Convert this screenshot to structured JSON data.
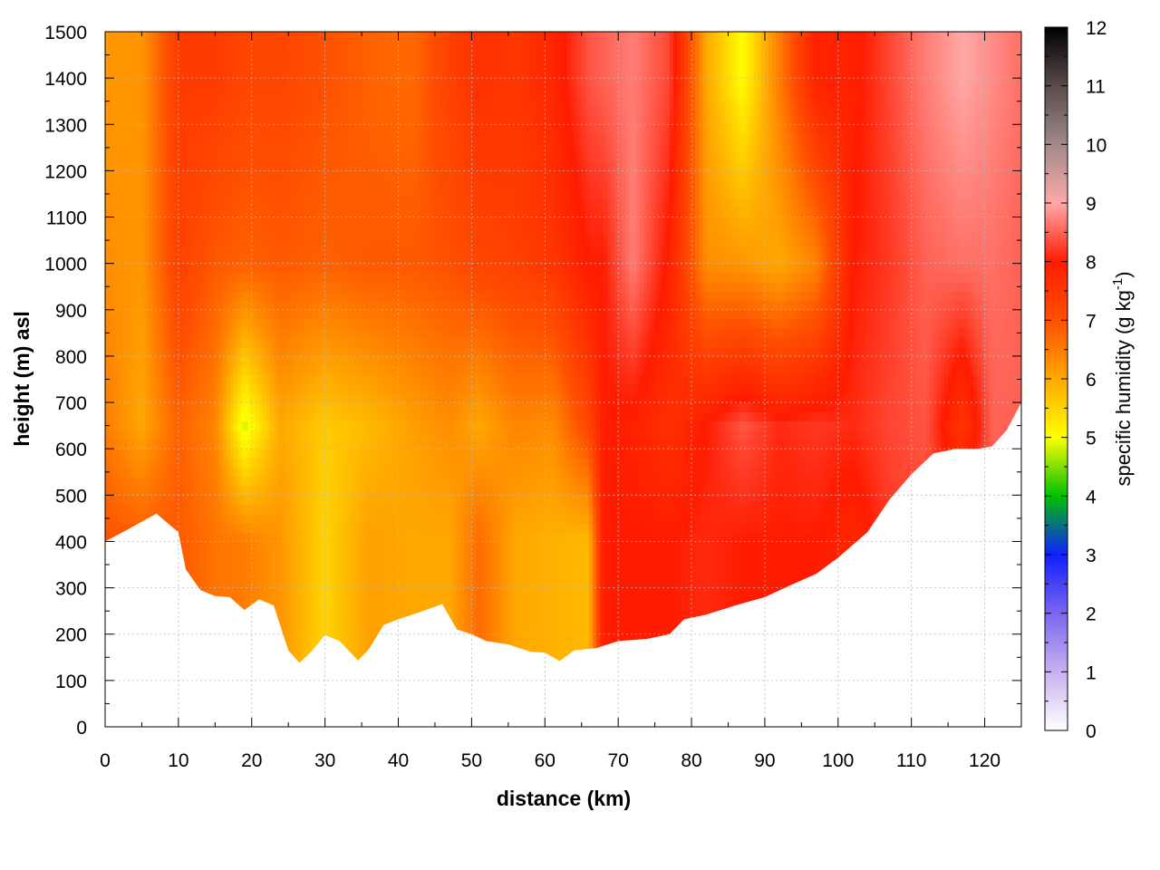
{
  "chart_data": {
    "type": "heatmap",
    "title": "",
    "xlabel": "distance (km)",
    "ylabel": "height (m) asl",
    "colorbar_label": "specific humidity (g kg",
    "colorbar_label_exponent": "-1",
    "colorbar_label_close": ")",
    "xlim": [
      0,
      125
    ],
    "ylim": [
      0,
      1500
    ],
    "clim": [
      0,
      12
    ],
    "x_ticks": [
      "0",
      "10",
      "20",
      "30",
      "40",
      "50",
      "60",
      "70",
      "80",
      "90",
      "100",
      "110",
      "120"
    ],
    "y_ticks": [
      "0",
      "100",
      "200",
      "300",
      "400",
      "500",
      "600",
      "700",
      "800",
      "900",
      "1000",
      "1100",
      "1200",
      "1300",
      "1400",
      "1500"
    ],
    "colorbar_ticks": [
      "0",
      "1",
      "2",
      "3",
      "4",
      "5",
      "6",
      "7",
      "8",
      "9",
      "10",
      "11",
      "12"
    ],
    "grid": true,
    "colormap": [
      [
        0,
        "#ffffff"
      ],
      [
        1,
        "#c8b0f0"
      ],
      [
        2,
        "#7a66f0"
      ],
      [
        3,
        "#1020ff"
      ],
      [
        4,
        "#00c000"
      ],
      [
        5,
        "#ffff00"
      ],
      [
        6,
        "#ffa800"
      ],
      [
        7,
        "#ff5000"
      ],
      [
        8,
        "#ff1c00"
      ],
      [
        9,
        "#ffa8a8"
      ],
      [
        10,
        "#a08a8a"
      ],
      [
        11,
        "#5a4a4a"
      ],
      [
        12,
        "#000000"
      ]
    ],
    "terrain_bottom": [
      [
        0,
        400
      ],
      [
        3,
        425
      ],
      [
        7,
        460
      ],
      [
        10,
        420
      ],
      [
        11,
        340
      ],
      [
        13,
        295
      ],
      [
        15,
        282
      ],
      [
        17,
        280
      ],
      [
        19,
        252
      ],
      [
        21,
        275
      ],
      [
        23,
        262
      ],
      [
        25,
        165
      ],
      [
        26.5,
        138
      ],
      [
        28,
        160
      ],
      [
        30,
        198
      ],
      [
        32,
        185
      ],
      [
        34.5,
        143
      ],
      [
        36,
        168
      ],
      [
        38,
        220
      ],
      [
        40,
        232
      ],
      [
        43,
        248
      ],
      [
        46,
        265
      ],
      [
        48,
        210
      ],
      [
        50,
        200
      ],
      [
        52,
        185
      ],
      [
        55,
        178
      ],
      [
        58,
        162
      ],
      [
        60,
        160
      ],
      [
        62,
        142
      ],
      [
        64,
        165
      ],
      [
        67,
        170
      ],
      [
        70,
        185
      ],
      [
        74,
        190
      ],
      [
        77,
        200
      ],
      [
        79,
        232
      ],
      [
        82,
        242
      ],
      [
        86,
        262
      ],
      [
        90,
        280
      ],
      [
        93,
        302
      ],
      [
        97,
        330
      ],
      [
        100,
        365
      ],
      [
        104,
        420
      ],
      [
        107,
        490
      ],
      [
        110,
        545
      ],
      [
        113,
        590
      ],
      [
        116,
        600
      ],
      [
        119,
        600
      ],
      [
        121,
        605
      ],
      [
        123,
        640
      ],
      [
        125,
        700
      ]
    ],
    "humidity_profiles": [
      {
        "x": 0,
        "h": [
          7.0,
          6.5,
          6.3,
          6.2
        ]
      },
      {
        "x": 5,
        "h": [
          6.9,
          6.0,
          6.2,
          6.2
        ]
      },
      {
        "x": 10,
        "h": [
          6.9,
          6.8,
          7.3,
          7.4
        ]
      },
      {
        "x": 15,
        "h": [
          6.6,
          6.4,
          6.9,
          7.4
        ]
      },
      {
        "x": 19,
        "h": [
          6.5,
          4.8,
          6.8,
          7.2
        ]
      },
      {
        "x": 24,
        "h": [
          6.2,
          6.0,
          6.9,
          7.2
        ]
      },
      {
        "x": 30,
        "h": [
          5.5,
          5.6,
          6.8,
          7.0
        ]
      },
      {
        "x": 36,
        "h": [
          6.1,
          5.8,
          6.9,
          6.8
        ]
      },
      {
        "x": 42,
        "h": [
          6.0,
          6.1,
          6.9,
          6.7
        ]
      },
      {
        "x": 47,
        "h": [
          6.0,
          6.3,
          7.0,
          7.3
        ]
      },
      {
        "x": 51,
        "h": [
          6.7,
          6.0,
          7.2,
          7.6
        ]
      },
      {
        "x": 56,
        "h": [
          6.0,
          6.4,
          7.3,
          7.5
        ]
      },
      {
        "x": 61,
        "h": [
          5.9,
          6.3,
          7.5,
          7.8
        ]
      },
      {
        "x": 66,
        "h": [
          5.8,
          7.2,
          8.0,
          8.4
        ]
      },
      {
        "x": 68,
        "h": [
          8.0,
          8.0,
          8.0,
          8.5
        ]
      },
      {
        "x": 72,
        "h": [
          8.0,
          7.9,
          8.7,
          8.7
        ]
      },
      {
        "x": 77,
        "h": [
          8.0,
          7.6,
          7.9,
          8.3
        ]
      },
      {
        "x": 82,
        "h": [
          8.1,
          8.0,
          6.3,
          6.0
        ]
      },
      {
        "x": 87,
        "h": [
          8.0,
          8.4,
          6.2,
          5.0
        ]
      },
      {
        "x": 92,
        "h": [
          8.0,
          8.1,
          6.0,
          6.5
        ]
      },
      {
        "x": 97,
        "h": [
          8.0,
          8.2,
          6.4,
          7.9
        ]
      },
      {
        "x": 102,
        "h": [
          7.8,
          8.1,
          8.0,
          7.9
        ]
      },
      {
        "x": 107,
        "h": [
          8.2,
          8.3,
          8.2,
          8.3
        ]
      },
      {
        "x": 112,
        "h": [
          8.3,
          8.4,
          8.5,
          8.7
        ]
      },
      {
        "x": 117,
        "h": [
          8.4,
          7.5,
          8.6,
          9.0
        ]
      },
      {
        "x": 121,
        "h": [
          8.5,
          8.5,
          8.6,
          8.8
        ]
      },
      {
        "x": 125,
        "h": [
          8.6,
          8.5,
          8.5,
          8.6
        ]
      }
    ],
    "profile_heights": [
      400,
      650,
      1000,
      1400
    ]
  }
}
